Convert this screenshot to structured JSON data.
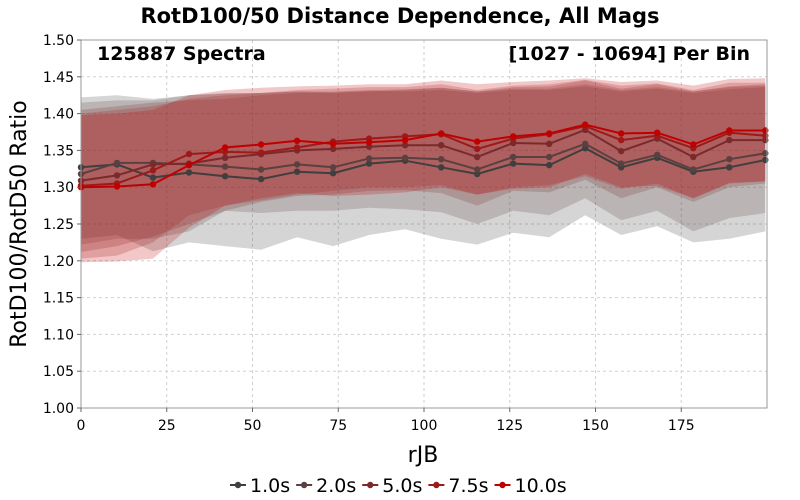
{
  "chart_data": {
    "type": "line",
    "title": "RotD100/50 Distance Dependence, All Mags",
    "annotations": {
      "left": "125887 Spectra",
      "right": "[1027 - 10694] Per Bin"
    },
    "xlabel": "rJB",
    "ylabel": "RotD100/RotD50 Ratio",
    "xlim": [
      0,
      200
    ],
    "ylim": [
      1.0,
      1.5
    ],
    "x_ticks": [
      "0",
      "25",
      "50",
      "75",
      "100",
      "125",
      "150",
      "175"
    ],
    "y_ticks": [
      "1.00",
      "1.05",
      "1.10",
      "1.15",
      "1.20",
      "1.25",
      "1.30",
      "1.35",
      "1.40",
      "1.45",
      "1.50"
    ],
    "grid": true,
    "legend_position": "bottom",
    "x": [
      0,
      10.5,
      21,
      31.5,
      42,
      52.5,
      63,
      73.5,
      84,
      94.5,
      105,
      115.5,
      126,
      136.5,
      147,
      157.5,
      168,
      178.5,
      189,
      199.5
    ],
    "series": [
      {
        "name": "1.0s",
        "color": "#3f3f3f",
        "values": [
          1.327,
          1.331,
          1.313,
          1.32,
          1.315,
          1.311,
          1.321,
          1.319,
          1.332,
          1.336,
          1.327,
          1.318,
          1.332,
          1.33,
          1.353,
          1.327,
          1.34,
          1.321,
          1.327,
          1.337
        ],
        "band_upper": [
          1.422,
          1.425,
          1.42,
          1.425,
          1.428,
          1.428,
          1.43,
          1.429,
          1.431,
          1.43,
          1.432,
          1.428,
          1.432,
          1.432,
          1.437,
          1.43,
          1.434,
          1.428,
          1.433,
          1.436
        ],
        "band_lower": [
          1.23,
          1.235,
          1.213,
          1.225,
          1.22,
          1.215,
          1.232,
          1.22,
          1.235,
          1.243,
          1.23,
          1.222,
          1.238,
          1.232,
          1.262,
          1.235,
          1.247,
          1.225,
          1.23,
          1.24
        ]
      },
      {
        "name": "2.0s",
        "color": "#5a4040",
        "values": [
          1.318,
          1.333,
          1.333,
          1.331,
          1.328,
          1.324,
          1.331,
          1.327,
          1.339,
          1.34,
          1.338,
          1.324,
          1.341,
          1.341,
          1.359,
          1.332,
          1.344,
          1.324,
          1.338,
          1.346
        ],
        "band_upper": [
          1.415,
          1.418,
          1.418,
          1.425,
          1.427,
          1.428,
          1.43,
          1.43,
          1.432,
          1.433,
          1.435,
          1.43,
          1.434,
          1.434,
          1.44,
          1.432,
          1.436,
          1.43,
          1.436,
          1.438
        ],
        "band_lower": [
          1.222,
          1.23,
          1.23,
          1.24,
          1.268,
          1.265,
          1.268,
          1.268,
          1.272,
          1.27,
          1.266,
          1.25,
          1.268,
          1.262,
          1.285,
          1.255,
          1.268,
          1.24,
          1.258,
          1.265
        ]
      },
      {
        "name": "5.0s",
        "color": "#7a2a2a",
        "values": [
          1.309,
          1.316,
          1.331,
          1.332,
          1.34,
          1.345,
          1.35,
          1.352,
          1.355,
          1.357,
          1.357,
          1.341,
          1.36,
          1.359,
          1.378,
          1.349,
          1.366,
          1.341,
          1.364,
          1.364
        ],
        "band_upper": [
          1.405,
          1.41,
          1.415,
          1.418,
          1.42,
          1.425,
          1.428,
          1.428,
          1.43,
          1.432,
          1.435,
          1.43,
          1.436,
          1.437,
          1.445,
          1.434,
          1.44,
          1.43,
          1.437,
          1.44
        ],
        "band_lower": [
          1.212,
          1.22,
          1.233,
          1.25,
          1.268,
          1.28,
          1.288,
          1.29,
          1.295,
          1.296,
          1.292,
          1.275,
          1.295,
          1.293,
          1.31,
          1.285,
          1.3,
          1.28,
          1.3,
          1.305
        ]
      },
      {
        "name": "7.5s",
        "color": "#9e1a1a",
        "values": [
          1.302,
          1.305,
          1.323,
          1.345,
          1.348,
          1.347,
          1.354,
          1.362,
          1.366,
          1.369,
          1.372,
          1.352,
          1.366,
          1.372,
          1.383,
          1.364,
          1.37,
          1.353,
          1.374,
          1.37
        ],
        "band_upper": [
          1.4,
          1.405,
          1.41,
          1.42,
          1.425,
          1.428,
          1.432,
          1.434,
          1.436,
          1.436,
          1.44,
          1.432,
          1.438,
          1.44,
          1.446,
          1.438,
          1.441,
          1.432,
          1.442,
          1.442
        ],
        "band_lower": [
          1.203,
          1.207,
          1.225,
          1.262,
          1.275,
          1.282,
          1.29,
          1.295,
          1.3,
          1.3,
          1.303,
          1.29,
          1.3,
          1.303,
          1.315,
          1.298,
          1.305,
          1.285,
          1.305,
          1.308
        ]
      },
      {
        "name": "10.0s",
        "color": "#c00000",
        "values": [
          1.3,
          1.301,
          1.304,
          1.33,
          1.354,
          1.358,
          1.363,
          1.359,
          1.361,
          1.364,
          1.373,
          1.362,
          1.369,
          1.373,
          1.385,
          1.373,
          1.374,
          1.358,
          1.377,
          1.377
        ],
        "band_upper": [
          1.398,
          1.4,
          1.405,
          1.425,
          1.432,
          1.435,
          1.437,
          1.438,
          1.44,
          1.44,
          1.445,
          1.44,
          1.443,
          1.445,
          1.448,
          1.443,
          1.445,
          1.438,
          1.447,
          1.448
        ],
        "band_lower": [
          1.198,
          1.199,
          1.203,
          1.245,
          1.275,
          1.285,
          1.292,
          1.288,
          1.29,
          1.293,
          1.3,
          1.29,
          1.298,
          1.3,
          1.318,
          1.3,
          1.302,
          1.285,
          1.306,
          1.308
        ]
      }
    ]
  }
}
